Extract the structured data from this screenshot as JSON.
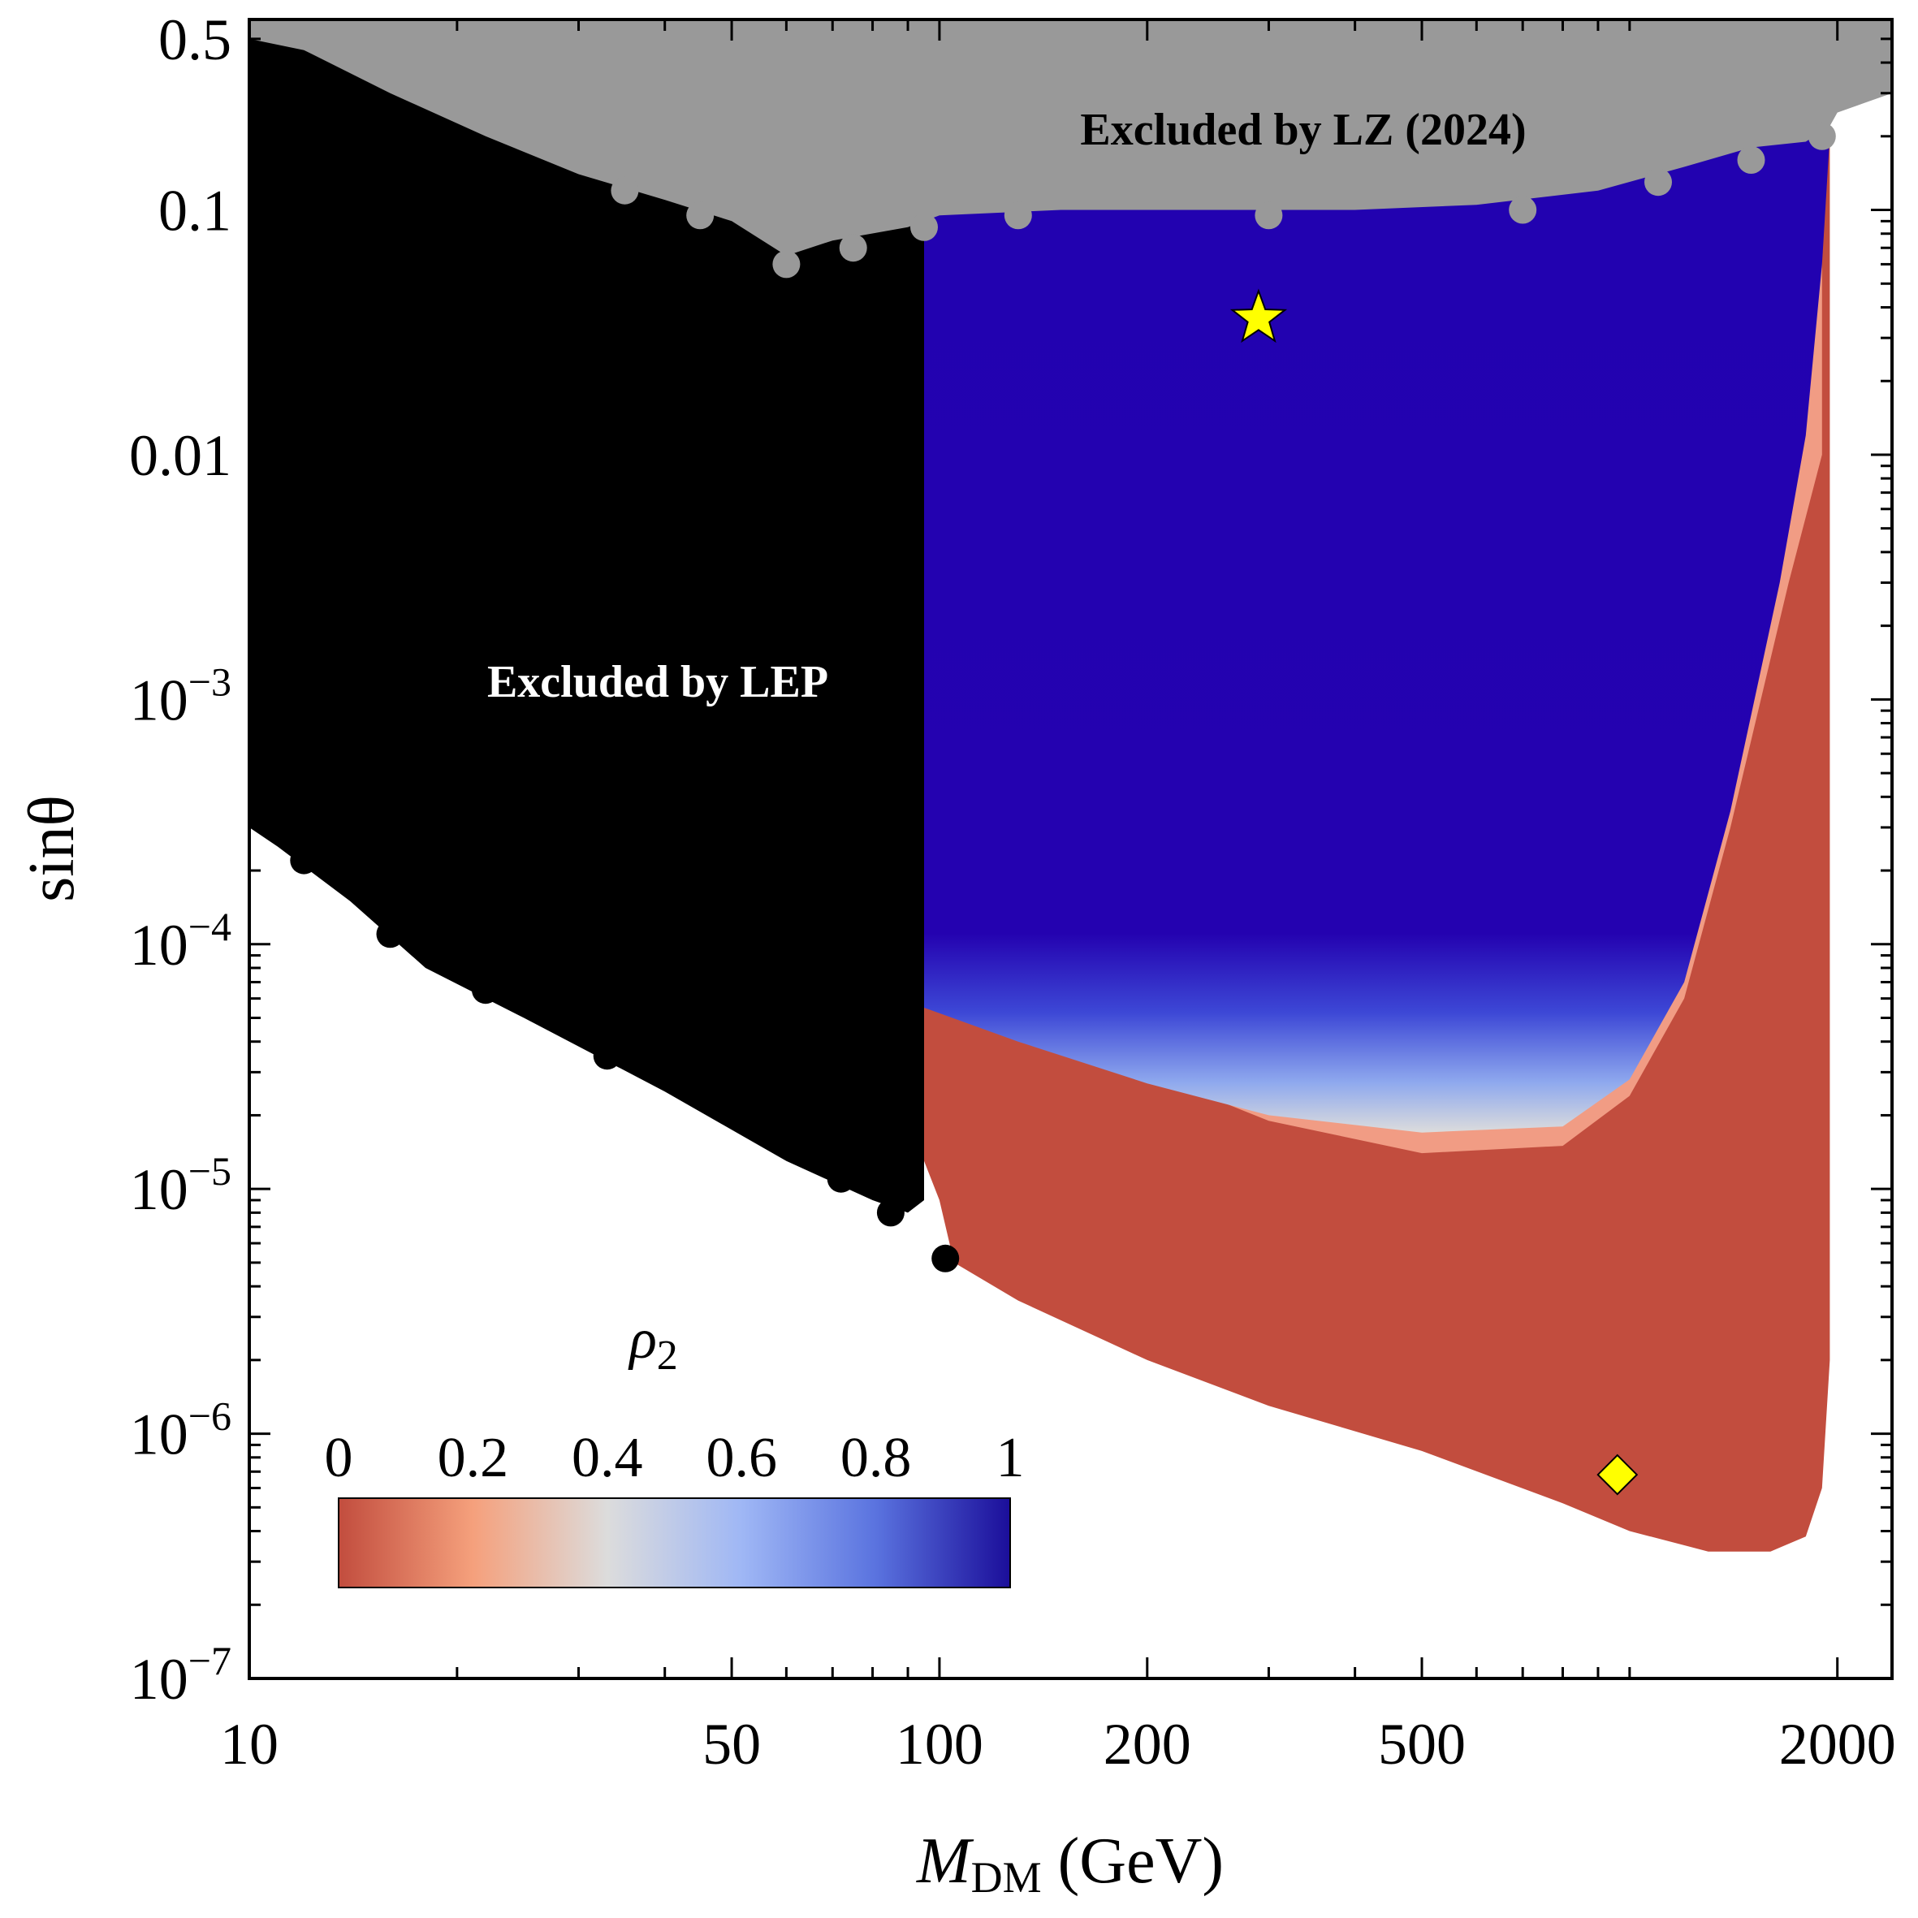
{
  "chart_data": {
    "type": "scatter",
    "xlabel_main": "M",
    "xlabel_sub": "DM",
    "xlabel_unit": " (GeV)",
    "ylabel": "sinθ",
    "x_scale": "log",
    "y_scale": "log",
    "xlim": [
      10,
      2400
    ],
    "ylim": [
      1e-07,
      0.6
    ],
    "grid": false,
    "x_ticks": [
      {
        "v": 10,
        "label": "10"
      },
      {
        "v": 50,
        "label": "50"
      },
      {
        "v": 100,
        "label": "100"
      },
      {
        "v": 200,
        "label": "200"
      },
      {
        "v": 500,
        "label": "500"
      },
      {
        "v": 2000,
        "label": "2000"
      }
    ],
    "y_ticks": [
      {
        "v": 0.5,
        "base": "0.5",
        "exp": ""
      },
      {
        "v": 0.1,
        "base": "0.1",
        "exp": ""
      },
      {
        "v": 0.01,
        "base": "0.01",
        "exp": ""
      },
      {
        "v": 0.001,
        "base": "10",
        "exp": "−3"
      },
      {
        "v": 0.0001,
        "base": "10",
        "exp": "−4"
      },
      {
        "v": 1e-05,
        "base": "10",
        "exp": "−5"
      },
      {
        "v": 1e-06,
        "base": "10",
        "exp": "−6"
      },
      {
        "v": 1e-07,
        "base": "10",
        "exp": "−7"
      }
    ],
    "regions": [
      {
        "name": "LZ",
        "label": "Excluded by LZ (2024)",
        "color": "#999999",
        "label_color": "#000000"
      },
      {
        "name": "LEP",
        "label": "Excluded by LEP",
        "color": "#000000",
        "label_color": "#ffffff",
        "x_max": 95
      },
      {
        "name": "allowed-blue",
        "color": "#2202b0"
      },
      {
        "name": "allowed-red",
        "color": "#c24d3e"
      }
    ],
    "markers": [
      {
        "shape": "star",
        "x": 290,
        "y": 0.036,
        "color": "#ffff00"
      },
      {
        "shape": "diamond",
        "x": 960,
        "y": 6.8e-07,
        "color": "#ffff00"
      }
    ],
    "colorbar": {
      "label": "ρ",
      "label_sub": "2",
      "min": 0,
      "max": 1,
      "ticks": [
        "0",
        "0.2",
        "0.4",
        "0.6",
        "0.8",
        "1"
      ],
      "colors": [
        "#c24d3e",
        "#f5a07c",
        "#dcdcdc",
        "#9fb7f5",
        "#5a73df",
        "#1b0e9a"
      ]
    }
  }
}
